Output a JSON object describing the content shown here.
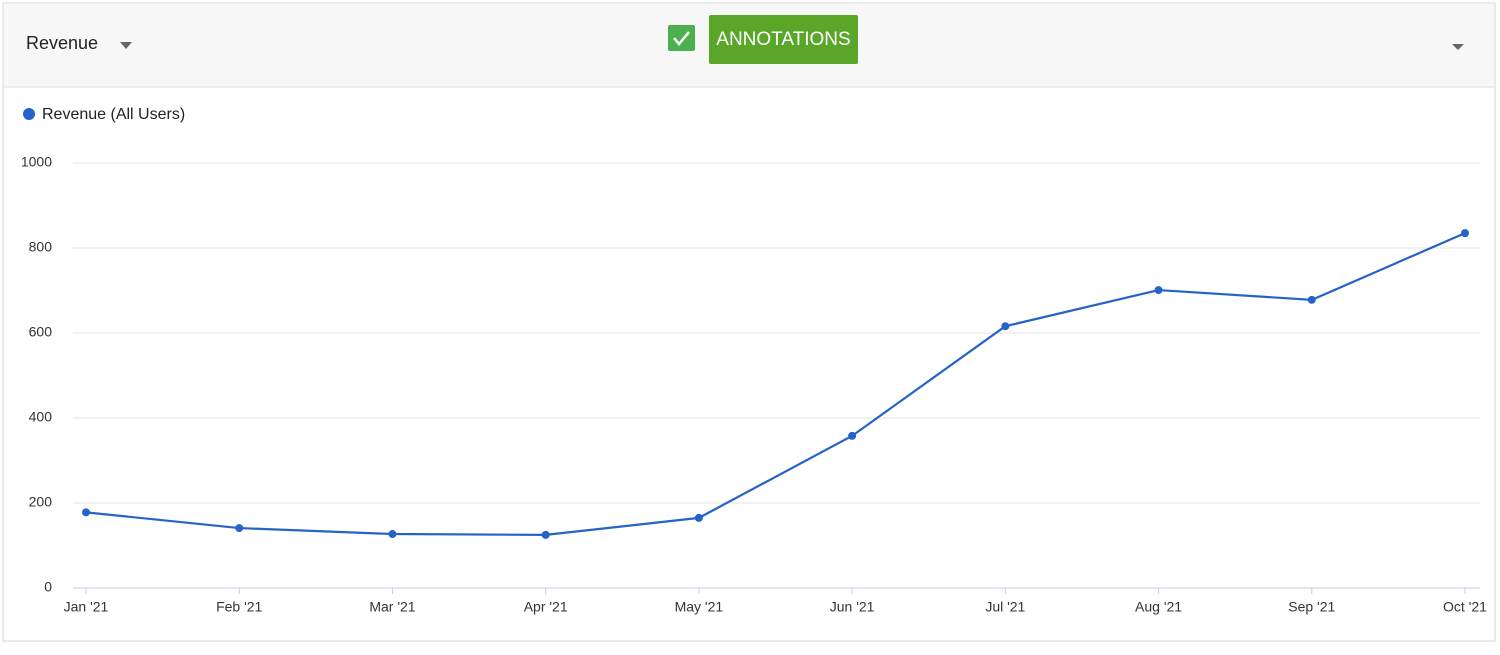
{
  "header": {
    "metric": "Revenue",
    "button": "ANNOTATIONS"
  },
  "chart_data": {
    "type": "line",
    "categories": [
      "Jan '21",
      "Feb '21",
      "Mar '21",
      "Apr '21",
      "May '21",
      "Jun '21",
      "Jul '21",
      "Aug '21",
      "Sep '21",
      "Oct '21"
    ],
    "series": [
      {
        "name": "Revenue (All Users)",
        "color": "#2563c7",
        "values": [
          178,
          141,
          127,
          125,
          165,
          358,
          616,
          701,
          678,
          835
        ]
      }
    ],
    "ylim": [
      0,
      1000
    ],
    "yticks": [
      0,
      200,
      400,
      600,
      800,
      1000
    ],
    "grid": true
  }
}
